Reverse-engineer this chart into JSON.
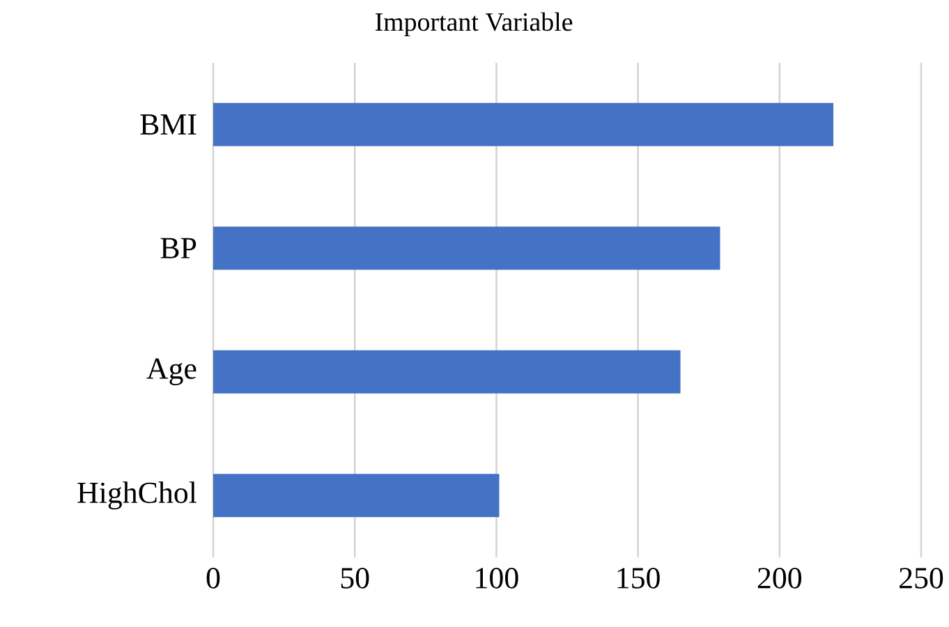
{
  "chart_data": {
    "type": "bar",
    "orientation": "horizontal",
    "title": "Important Variable",
    "categories": [
      "BMI",
      "BP",
      "Age",
      "HighChol"
    ],
    "values": [
      219,
      179,
      165,
      101
    ],
    "color": "#4472c4",
    "xlim": [
      0,
      250
    ],
    "xticks": [
      0,
      50,
      100,
      150,
      200,
      250
    ],
    "grid": "x"
  }
}
